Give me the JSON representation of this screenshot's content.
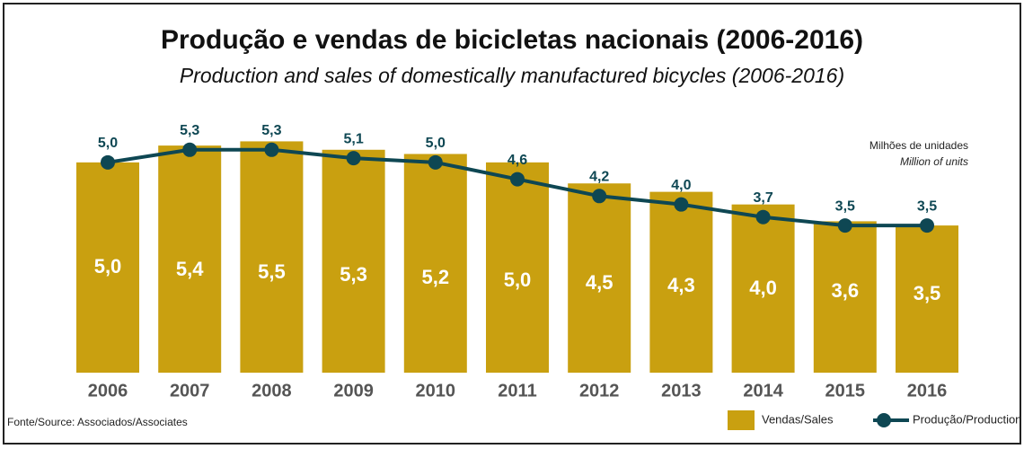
{
  "chart_data": {
    "type": "bar",
    "title": "Produção e vendas de bicicletas nacionais (2006-2016)",
    "subtitle": "Production and sales of domestically manufactured bicycles (2006-2016)",
    "unit_note": "Milhões de unidades",
    "unit_note_en": "Million of units",
    "source": "Fonte/Source: Associados/Associates",
    "categories": [
      "2006",
      "2007",
      "2008",
      "2009",
      "2010",
      "2011",
      "2012",
      "2013",
      "2014",
      "2015",
      "2016"
    ],
    "ylim": [
      0,
      6
    ],
    "series": [
      {
        "name": "Vendas/Sales",
        "type": "bar",
        "color": "#c9a010",
        "values": [
          5.0,
          5.4,
          5.5,
          5.3,
          5.2,
          5.0,
          4.5,
          4.3,
          4.0,
          3.6,
          3.5
        ],
        "value_labels": [
          "5,0",
          "5,4",
          "5,5",
          "5,3",
          "5,2",
          "5,0",
          "4,5",
          "4,3",
          "4,0",
          "3,6",
          "3,5"
        ]
      },
      {
        "name": "Produção/Production",
        "type": "line",
        "color": "#0e4753",
        "values": [
          5.0,
          5.3,
          5.3,
          5.1,
          5.0,
          4.6,
          4.2,
          4.0,
          3.7,
          3.5,
          3.5
        ],
        "value_labels": [
          "5,0",
          "5,3",
          "5,3",
          "5,1",
          "5,0",
          "4,6",
          "4,2",
          "4,0",
          "3,7",
          "3,5",
          "3,5"
        ]
      }
    ]
  }
}
